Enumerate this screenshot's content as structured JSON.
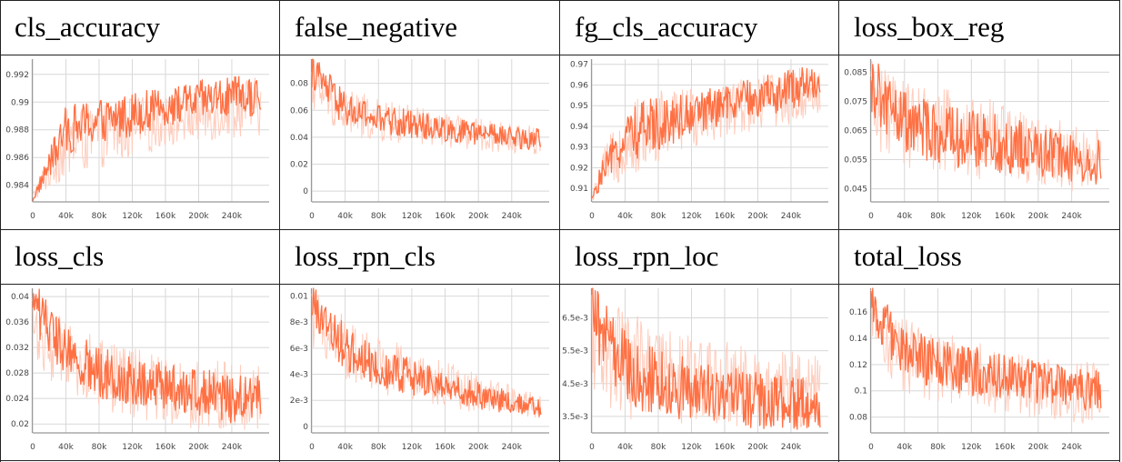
{
  "chart_data": [
    {
      "type": "line",
      "title": "cls_accuracy",
      "yticks": [
        "0.984",
        "0.986",
        "0.988",
        "0.99",
        "0.992"
      ],
      "ylim": [
        0.9828,
        0.9931
      ],
      "grid": true,
      "x": [
        0,
        40,
        80,
        120,
        160,
        200,
        240,
        275
      ],
      "xticks": [
        "0",
        "40k",
        "80k",
        "120k",
        "160k",
        "200k",
        "240k"
      ],
      "series": {
        "smoothed": [
          0.983,
          0.988,
          0.9886,
          0.9892,
          0.9896,
          0.9901,
          0.9903,
          0.9904
        ],
        "raw": [
          0.9835,
          0.9895,
          0.99,
          0.9905,
          0.9905,
          0.9912,
          0.9918,
          0.9918
        ],
        "raw_low": [
          0.9828,
          0.9845,
          0.9852,
          0.9858,
          0.9868,
          0.987,
          0.9874,
          0.9876
        ]
      },
      "color": "#ff7043",
      "band": "#ffccbc"
    },
    {
      "type": "line",
      "title": "false_negative",
      "yticks": [
        "0",
        "0.02",
        "0.04",
        "0.06",
        "0.08"
      ],
      "ylim": [
        -0.008,
        0.098
      ],
      "grid": true,
      "x": [
        0,
        40,
        80,
        120,
        160,
        200,
        240,
        275
      ],
      "xticks": [
        "0",
        "40k",
        "80k",
        "120k",
        "160k",
        "200k",
        "240k"
      ],
      "series": {
        "smoothed": [
          0.09,
          0.06,
          0.053,
          0.05,
          0.046,
          0.043,
          0.04,
          0.038
        ],
        "raw": [
          0.098,
          0.078,
          0.068,
          0.064,
          0.058,
          0.054,
          0.05,
          0.05
        ],
        "raw_low": [
          0.06,
          0.04,
          0.036,
          0.034,
          0.032,
          0.03,
          0.028,
          0.026
        ]
      },
      "color": "#ff7043",
      "band": "#ffccbc"
    },
    {
      "type": "line",
      "title": "fg_cls_accuracy",
      "yticks": [
        "0.91",
        "0.92",
        "0.93",
        "0.94",
        "0.95",
        "0.96",
        "0.97"
      ],
      "ylim": [
        0.9035,
        0.9725
      ],
      "grid": true,
      "x": [
        0,
        10,
        40,
        80,
        120,
        160,
        200,
        240,
        275
      ],
      "xticks": [
        "0",
        "40k",
        "80k",
        "120k",
        "160k",
        "200k",
        "240k"
      ],
      "series": {
        "smoothed": [
          0.905,
          0.915,
          0.935,
          0.942,
          0.946,
          0.95,
          0.954,
          0.958,
          0.962
        ],
        "raw": [
          0.905,
          0.925,
          0.952,
          0.958,
          0.96,
          0.962,
          0.966,
          0.968,
          0.97
        ],
        "raw_low": [
          0.903,
          0.908,
          0.915,
          0.92,
          0.93,
          0.935,
          0.938,
          0.94,
          0.945
        ]
      },
      "color": "#ff7043",
      "band": "#ffccbc"
    },
    {
      "type": "line",
      "title": "loss_box_reg",
      "yticks": [
        "0.045",
        "0.055",
        "0.065",
        "0.075",
        "0.085"
      ],
      "ylim": [
        0.0405,
        0.0895
      ],
      "grid": true,
      "x": [
        0,
        40,
        80,
        120,
        160,
        200,
        240,
        275
      ],
      "xticks": [
        "0",
        "40k",
        "80k",
        "120k",
        "160k",
        "200k",
        "240k"
      ],
      "series": {
        "smoothed": [
          0.08,
          0.068,
          0.064,
          0.062,
          0.06,
          0.058,
          0.056,
          0.054
        ],
        "raw": [
          0.089,
          0.082,
          0.08,
          0.078,
          0.074,
          0.07,
          0.068,
          0.066
        ],
        "raw_low": [
          0.058,
          0.052,
          0.05,
          0.048,
          0.046,
          0.045,
          0.044,
          0.042
        ]
      },
      "color": "#ff7043",
      "band": "#ffccbc"
    },
    {
      "type": "line",
      "title": "loss_cls",
      "yticks": [
        "0.02",
        "0.024",
        "0.028",
        "0.032",
        "0.036",
        "0.04"
      ],
      "ylim": [
        0.0186,
        0.0413
      ],
      "grid": true,
      "x": [
        0,
        40,
        80,
        120,
        160,
        200,
        240,
        275
      ],
      "xticks": [
        "0",
        "40k",
        "80k",
        "120k",
        "160k",
        "200k",
        "240k"
      ],
      "series": {
        "smoothed": [
          0.039,
          0.031,
          0.028,
          0.027,
          0.026,
          0.025,
          0.024,
          0.024
        ],
        "raw": [
          0.0413,
          0.036,
          0.034,
          0.032,
          0.031,
          0.03,
          0.03,
          0.029
        ],
        "raw_low": [
          0.03,
          0.024,
          0.022,
          0.021,
          0.02,
          0.019,
          0.019,
          0.019
        ]
      },
      "color": "#ff7043",
      "band": "#ffccbc"
    },
    {
      "type": "line",
      "title": "loss_rpn_cls",
      "yticks": [
        "0",
        "2e-3",
        "4e-3",
        "6e-3",
        "8e-3",
        "0.01"
      ],
      "ylim": [
        -0.0005,
        0.0106
      ],
      "grid": true,
      "x": [
        0,
        40,
        80,
        120,
        160,
        200,
        240,
        275
      ],
      "xticks": [
        "0",
        "40k",
        "80k",
        "120k",
        "160k",
        "200k",
        "240k"
      ],
      "series": {
        "smoothed": [
          0.0095,
          0.006,
          0.0046,
          0.0038,
          0.003,
          0.0024,
          0.0018,
          0.0014
        ],
        "raw": [
          0.0106,
          0.0085,
          0.007,
          0.006,
          0.005,
          0.004,
          0.0032,
          0.0026
        ],
        "raw_low": [
          0.006,
          0.0035,
          0.0025,
          0.002,
          0.0015,
          0.001,
          0.0008,
          0.0006
        ]
      },
      "color": "#ff7043",
      "band": "#ffccbc"
    },
    {
      "type": "line",
      "title": "loss_rpn_loc",
      "yticks": [
        "3.5e-3",
        "4.5e-3",
        "5.5e-3",
        "6.5e-3"
      ],
      "ylim": [
        0.003,
        0.0074
      ],
      "grid": true,
      "x": [
        0,
        40,
        80,
        120,
        160,
        200,
        240,
        275
      ],
      "xticks": [
        "0",
        "40k",
        "80k",
        "120k",
        "160k",
        "200k",
        "240k"
      ],
      "series": {
        "smoothed": [
          0.0065,
          0.005,
          0.0045,
          0.0043,
          0.0041,
          0.004,
          0.0039,
          0.0038
        ],
        "raw": [
          0.0074,
          0.0068,
          0.0062,
          0.006,
          0.0058,
          0.0056,
          0.0055,
          0.0054
        ],
        "raw_low": [
          0.004,
          0.0034,
          0.0033,
          0.0032,
          0.0032,
          0.0031,
          0.0031,
          0.003
        ]
      },
      "color": "#ff7043",
      "band": "#ffccbc"
    },
    {
      "type": "line",
      "title": "total_loss",
      "yticks": [
        "0.08",
        "0.1",
        "0.12",
        "0.14",
        "0.16"
      ],
      "ylim": [
        0.068,
        0.178
      ],
      "grid": true,
      "x": [
        0,
        40,
        80,
        120,
        160,
        200,
        240,
        275
      ],
      "xticks": [
        "0",
        "40k",
        "80k",
        "120k",
        "160k",
        "200k",
        "240k"
      ],
      "series": {
        "smoothed": [
          0.165,
          0.13,
          0.12,
          0.115,
          0.11,
          0.106,
          0.102,
          0.1
        ],
        "raw": [
          0.178,
          0.155,
          0.145,
          0.14,
          0.132,
          0.128,
          0.124,
          0.122
        ],
        "raw_low": [
          0.125,
          0.095,
          0.09,
          0.086,
          0.082,
          0.079,
          0.076,
          0.074
        ]
      },
      "color": "#ff7043",
      "band": "#ffccbc"
    }
  ]
}
